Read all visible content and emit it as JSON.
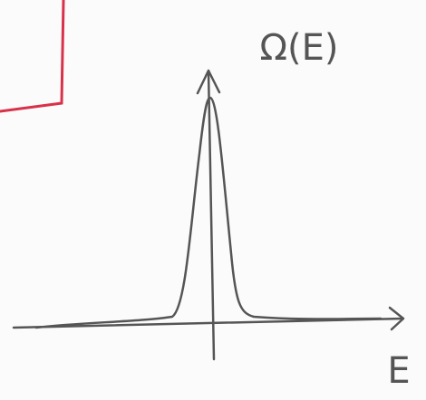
{
  "axes": {
    "y_label": "Ω(E)",
    "x_label": "E"
  }
}
